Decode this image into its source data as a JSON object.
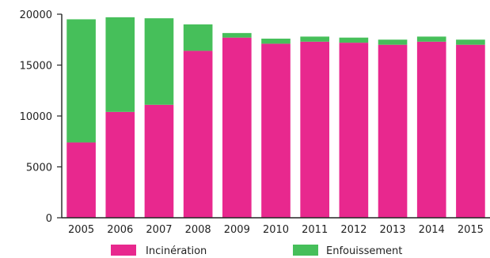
{
  "chart_data": {
    "type": "bar",
    "stacked": true,
    "title": "",
    "xlabel": "",
    "ylabel": "",
    "categories": [
      "2005",
      "2006",
      "2007",
      "2008",
      "2009",
      "2010",
      "2011",
      "2012",
      "2013",
      "2014",
      "2015"
    ],
    "series": [
      {
        "name": "Incinération",
        "color": "#e8288e",
        "values": [
          7400,
          10400,
          11100,
          16400,
          17700,
          17100,
          17300,
          17200,
          17000,
          17300,
          17000
        ]
      },
      {
        "name": "Enfouissement",
        "color": "#46bf5a",
        "values": [
          12100,
          9300,
          8500,
          2600,
          450,
          500,
          500,
          500,
          500,
          500,
          500
        ]
      }
    ],
    "ylim": [
      0,
      20000
    ],
    "yticks": [
      0,
      5000,
      10000,
      15000,
      20000
    ],
    "grid": false,
    "legend_position": "bottom"
  }
}
